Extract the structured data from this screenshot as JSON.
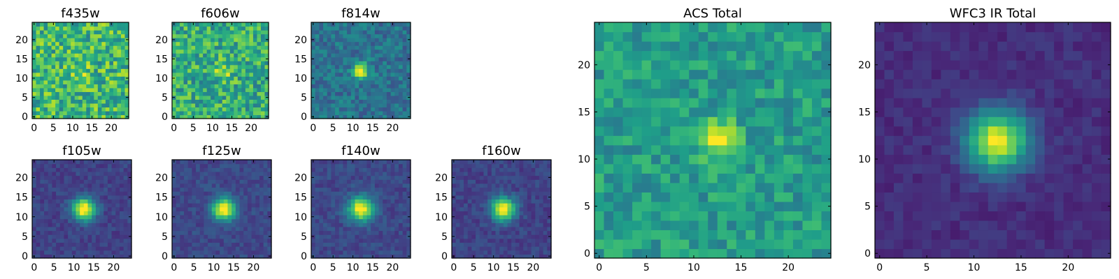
{
  "chart_data": {
    "type": "heatmap",
    "colormap": "viridis",
    "grid_size": 25,
    "value_range": [
      0,
      1
    ],
    "panels": [
      {
        "id": "f435w",
        "title": "f435w",
        "xticks": [
          0,
          5,
          10,
          15,
          20
        ],
        "yticks": [
          0,
          5,
          10,
          15,
          20
        ],
        "center": [
          12,
          12
        ],
        "peak": 0.18,
        "sigma": 1.6,
        "noise": 0.24,
        "background": 0.66
      },
      {
        "id": "f606w",
        "title": "f606w",
        "xticks": [
          0,
          5,
          10,
          15,
          20
        ],
        "yticks": [
          0,
          5,
          10,
          15,
          20
        ],
        "center": [
          12.5,
          12
        ],
        "peak": 0.25,
        "sigma": 1.6,
        "noise": 0.22,
        "background": 0.62
      },
      {
        "id": "f814w",
        "title": "f814w",
        "xticks": [
          0,
          5,
          10,
          15,
          20
        ],
        "yticks": [
          0,
          5,
          10,
          15,
          20
        ],
        "center": [
          12,
          12
        ],
        "peak": 0.7,
        "sigma": 1.3,
        "noise": 0.13,
        "background": 0.38
      },
      {
        "id": "f105w",
        "title": "f105w",
        "xticks": [
          0,
          5,
          10,
          15,
          20
        ],
        "yticks": [
          0,
          5,
          10,
          15,
          20
        ],
        "center": [
          12.5,
          12
        ],
        "peak": 0.85,
        "sigma": 2.0,
        "noise": 0.07,
        "background": 0.2
      },
      {
        "id": "f125w",
        "title": "f125w",
        "xticks": [
          0,
          5,
          10,
          15,
          20
        ],
        "yticks": [
          0,
          5,
          10,
          15,
          20
        ],
        "center": [
          12.5,
          12
        ],
        "peak": 0.85,
        "sigma": 2.0,
        "noise": 0.07,
        "background": 0.22
      },
      {
        "id": "f140w",
        "title": "f140w",
        "xticks": [
          0,
          5,
          10,
          15,
          20
        ],
        "yticks": [
          0,
          5,
          10,
          15,
          20
        ],
        "center": [
          12,
          12
        ],
        "peak": 0.8,
        "sigma": 2.2,
        "noise": 0.07,
        "background": 0.22
      },
      {
        "id": "f160w",
        "title": "f160w",
        "xticks": [
          0,
          5,
          10,
          15,
          20
        ],
        "yticks": [
          0,
          5,
          10,
          15,
          20
        ],
        "center": [
          12.5,
          12
        ],
        "peak": 0.82,
        "sigma": 2.1,
        "noise": 0.07,
        "background": 0.2
      },
      {
        "id": "acs_total",
        "title": "ACS Total",
        "xticks": [
          0,
          5,
          10,
          15,
          20
        ],
        "yticks": [
          0,
          5,
          10,
          15,
          20
        ],
        "center": [
          12.5,
          12
        ],
        "peak": 0.42,
        "sigma": 1.5,
        "noise": 0.14,
        "background": 0.55
      },
      {
        "id": "wfc3_ir_total",
        "title": "WFC3 IR Total",
        "xticks": [
          0,
          5,
          10,
          15,
          20
        ],
        "yticks": [
          0,
          5,
          10,
          15,
          20
        ],
        "center": [
          12.5,
          12
        ],
        "peak": 0.85,
        "sigma": 2.3,
        "noise": 0.05,
        "background": 0.13
      }
    ]
  }
}
